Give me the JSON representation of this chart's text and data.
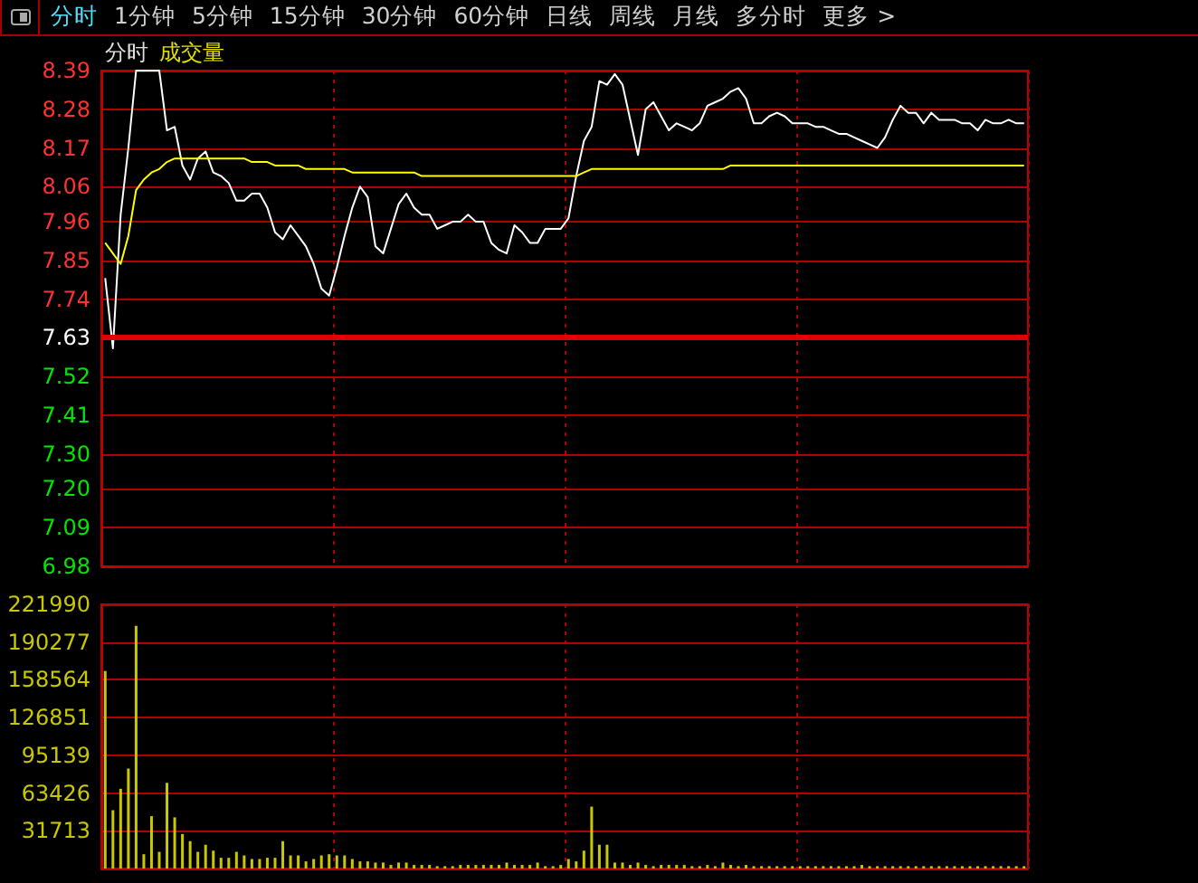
{
  "chart_data": [
    {
      "type": "line",
      "title": "分时",
      "subtitle": "成交量",
      "annotations": [
        "分时",
        "1分钟",
        "5分钟",
        "15分钟",
        "30分钟",
        "60分钟",
        "日线",
        "周线",
        "月线",
        "多分时",
        "更多 >"
      ],
      "categories": [
        null,
        null,
        null,
        null,
        null,
        null,
        null,
        null,
        null,
        null,
        null,
        null,
        null,
        null,
        null,
        null,
        null,
        null,
        null,
        null,
        null,
        null,
        null,
        null,
        null,
        null,
        null,
        null,
        null,
        null,
        null,
        null,
        null,
        null,
        null,
        null,
        null,
        null,
        null,
        null,
        null,
        null,
        null,
        null,
        null,
        null,
        null,
        null,
        null,
        null,
        null,
        null,
        null,
        null,
        null,
        null,
        null,
        null,
        null,
        null,
        null,
        null,
        null,
        null,
        null,
        null,
        null,
        null,
        null,
        null,
        null,
        null,
        null,
        null,
        null,
        null,
        null,
        null,
        null,
        null,
        null,
        null,
        null,
        null,
        null,
        null,
        null,
        null,
        null,
        null,
        null,
        null,
        null,
        null,
        null,
        null,
        null,
        null,
        null,
        null,
        null,
        null,
        null,
        null,
        null,
        null,
        null,
        null,
        null,
        null,
        null,
        null,
        null,
        null,
        null,
        null,
        null,
        null,
        null,
        null
      ],
      "series": [
        {
          "color": "#ffffff",
          "values": [
            7.8,
            7.6,
            7.98,
            8.17,
            8.39,
            8.39,
            8.39,
            8.39,
            8.22,
            8.23,
            8.12,
            8.08,
            8.14,
            8.16,
            8.1,
            8.09,
            8.07,
            8.02,
            8.02,
            8.04,
            8.04,
            8.0,
            7.93,
            7.91,
            7.95,
            7.92,
            7.89,
            7.84,
            7.77,
            7.75,
            7.83,
            7.92,
            8.0,
            8.06,
            8.03,
            7.89,
            7.87,
            7.94,
            8.01,
            8.04,
            8.0,
            7.98,
            7.98,
            7.94,
            7.95,
            7.96,
            7.96,
            7.98,
            7.96,
            7.96,
            7.9,
            7.88,
            7.87,
            7.95,
            7.93,
            7.9,
            7.9,
            7.94,
            7.94,
            7.94,
            7.97,
            8.09,
            8.19,
            8.23,
            8.36,
            8.35,
            8.38,
            8.35,
            8.25,
            8.15,
            8.28,
            8.3,
            8.26,
            8.22,
            8.24,
            8.23,
            8.22,
            8.24,
            8.29,
            8.3,
            8.31,
            8.33,
            8.34,
            8.31,
            8.24,
            8.24,
            8.26,
            8.27,
            8.26,
            8.24,
            8.24,
            8.24,
            8.23,
            8.23,
            8.22,
            8.21,
            8.21,
            8.2,
            8.19,
            8.18,
            8.17,
            8.2,
            8.25,
            8.29,
            8.27,
            8.27,
            8.24,
            8.27,
            8.25,
            8.25,
            8.25,
            8.24,
            8.24,
            8.22,
            8.25,
            8.24,
            8.24,
            8.25,
            8.24,
            8.24
          ]
        },
        {
          "color": "#ffff00",
          "values": [
            7.9,
            7.87,
            7.84,
            7.92,
            8.05,
            8.08,
            8.1,
            8.11,
            8.13,
            8.14,
            8.14,
            8.14,
            8.14,
            8.14,
            8.14,
            8.14,
            8.14,
            8.14,
            8.14,
            8.13,
            8.13,
            8.13,
            8.12,
            8.12,
            8.12,
            8.12,
            8.11,
            8.11,
            8.11,
            8.11,
            8.11,
            8.11,
            8.1,
            8.1,
            8.1,
            8.1,
            8.1,
            8.1,
            8.1,
            8.1,
            8.1,
            8.09,
            8.09,
            8.09,
            8.09,
            8.09,
            8.09,
            8.09,
            8.09,
            8.09,
            8.09,
            8.09,
            8.09,
            8.09,
            8.09,
            8.09,
            8.09,
            8.09,
            8.09,
            8.09,
            8.09,
            8.09,
            8.1,
            8.11,
            8.11,
            8.11,
            8.11,
            8.11,
            8.11,
            8.11,
            8.11,
            8.11,
            8.11,
            8.11,
            8.11,
            8.11,
            8.11,
            8.11,
            8.11,
            8.11,
            8.11,
            8.12,
            8.12,
            8.12,
            8.12,
            8.12,
            8.12,
            8.12,
            8.12,
            8.12,
            8.12,
            8.12,
            8.12,
            8.12,
            8.12,
            8.12,
            8.12,
            8.12,
            8.12,
            8.12,
            8.12,
            8.12,
            8.12,
            8.12,
            8.12,
            8.12,
            8.12,
            8.12,
            8.12,
            8.12,
            8.12,
            8.12,
            8.12,
            8.12,
            8.12,
            8.12,
            8.12,
            8.12,
            8.12,
            8.12
          ]
        }
      ],
      "ylim": [
        6.98,
        8.39
      ],
      "yticks": [
        8.39,
        8.28,
        8.17,
        8.06,
        7.96,
        7.85,
        7.74,
        7.63,
        7.52,
        7.41,
        {
          "value": 7.3,
          "label": "7.30"
        },
        {
          "value": 7.2,
          "label": "7.20"
        },
        7.09,
        6.98
      ],
      "ref_lines": [
        {
          "axis": "y",
          "value": 7.63
        }
      ],
      "grid": true,
      "marker": "none",
      "tick_labels": "y"
    },
    {
      "type": "bar",
      "color": "#c8c800",
      "categories": [
        null,
        null,
        null,
        null,
        null,
        null,
        null,
        null,
        null,
        null,
        null,
        null,
        null,
        null,
        null,
        null,
        null,
        null,
        null,
        null,
        null,
        null,
        null,
        null,
        null,
        null,
        null,
        null,
        null,
        null,
        null,
        null,
        null,
        null,
        null,
        null,
        null,
        null,
        null,
        null,
        null,
        null,
        null,
        null,
        null,
        null,
        null,
        null,
        null,
        null,
        null,
        null,
        null,
        null,
        null,
        null,
        null,
        null,
        null,
        null,
        null,
        null,
        null,
        null,
        null,
        null,
        null,
        null,
        null,
        null,
        null,
        null,
        null,
        null,
        null,
        null,
        null,
        null,
        null,
        null,
        null,
        null,
        null,
        null,
        null,
        null,
        null,
        null,
        null,
        null,
        null,
        null,
        null,
        null,
        null,
        null,
        null,
        null,
        null,
        null,
        null,
        null,
        null,
        null,
        null,
        null,
        null,
        null,
        null,
        null,
        null,
        null,
        null,
        null,
        null,
        null,
        null,
        null,
        null,
        null
      ],
      "values": [
        166000,
        49000,
        67000,
        84000,
        204000,
        12000,
        44000,
        14000,
        72000,
        43000,
        29000,
        23000,
        14000,
        20000,
        15000,
        9000,
        9000,
        14000,
        11000,
        8000,
        8000,
        9000,
        9000,
        23000,
        11000,
        11000,
        6000,
        8000,
        11000,
        12000,
        11000,
        11000,
        8000,
        6000,
        6000,
        5000,
        5000,
        3000,
        5000,
        5000,
        3000,
        3000,
        3000,
        2000,
        2000,
        2000,
        3000,
        3000,
        3000,
        3000,
        3000,
        3000,
        5000,
        3000,
        3000,
        3000,
        5000,
        2000,
        2000,
        3000,
        8000,
        6000,
        15000,
        52000,
        20000,
        20000,
        5000,
        5000,
        3000,
        5000,
        3000,
        2000,
        3000,
        3000,
        3000,
        3000,
        2000,
        2000,
        3000,
        2000,
        5000,
        3000,
        2000,
        3000,
        2000,
        2000,
        2000,
        2000,
        2000,
        2000,
        2000,
        2000,
        2000,
        2000,
        2000,
        2000,
        2000,
        2000,
        3000,
        2000,
        2000,
        2000,
        2000,
        2000,
        2000,
        2000,
        2000,
        2000,
        2000,
        2000,
        2000,
        2000,
        2000,
        2000,
        2000,
        2000,
        2000,
        2000,
        2000,
        2000
      ],
      "ylim": [
        0,
        221990
      ],
      "yticks": [
        31713,
        63426,
        95139,
        126851,
        158564,
        190277,
        221990
      ],
      "grid": true,
      "tick_labels": "y"
    }
  ]
}
